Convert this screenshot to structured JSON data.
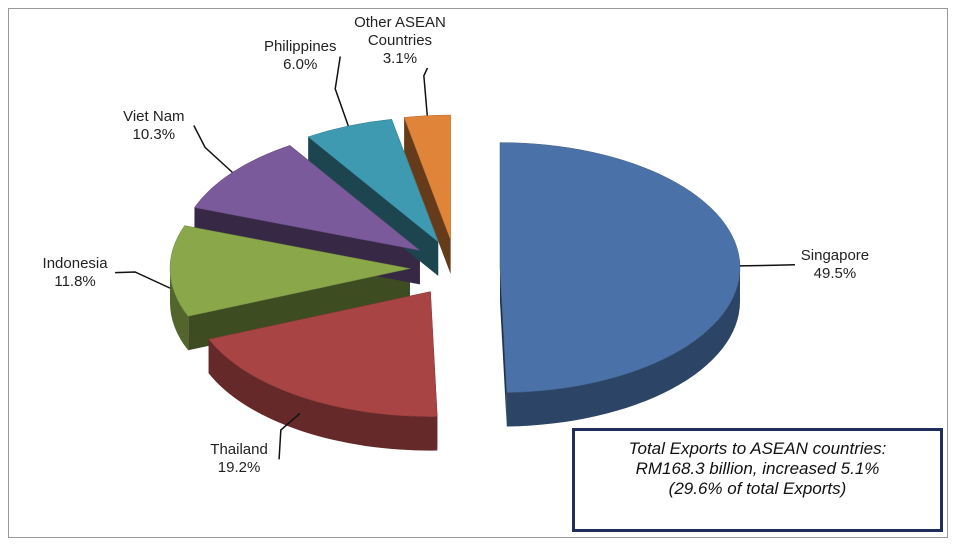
{
  "chart_data": {
    "type": "pie3d",
    "categories": [
      "Singapore",
      "Thailand",
      "Indonesia",
      "Viet Nam",
      "Philippines",
      "Other ASEAN Countries"
    ],
    "values": [
      49.5,
      19.2,
      11.8,
      10.3,
      6.0,
      3.1
    ],
    "value_labels": [
      "49.5%",
      "19.2%",
      "11.8%",
      "10.3%",
      "6.0%",
      "3.1%"
    ],
    "colors": [
      "#4a72a8",
      "#a84444",
      "#8aa84a",
      "#7a5a9a",
      "#3e9ab0",
      "#e0843a"
    ],
    "annotation": [
      "Total Exports to ASEAN countries:",
      "RM168.3 billion, increased 5.1%",
      "(29.6% of total Exports)"
    ]
  }
}
